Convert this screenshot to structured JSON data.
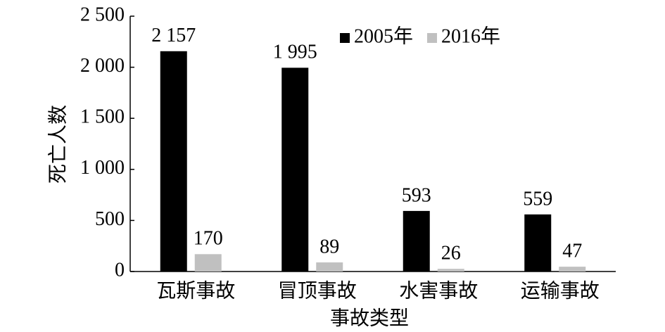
{
  "chart_data": {
    "type": "bar",
    "x_label": "事故类型",
    "y_label": "死亡人数",
    "categories": [
      "瓦斯事故",
      "冒顶事故",
      "水害事故",
      "运输事故"
    ],
    "series": [
      {
        "name": "2005年",
        "color": "#000000",
        "values": [
          2157,
          1995,
          593,
          559
        ],
        "value_labels": [
          "2 157",
          "1 995",
          "593",
          "559"
        ]
      },
      {
        "name": "2016年",
        "color": "#c0c0c0",
        "values": [
          170,
          89,
          26,
          47
        ]
      }
    ],
    "ylim": [
      0,
      2500
    ],
    "yticks": [
      0,
      500,
      {
        "value": 1000,
        "label": "1 000"
      },
      {
        "value": 1500,
        "label": "1 500"
      },
      {
        "value": 2000,
        "label": "2 000"
      },
      {
        "value": 2500,
        "label": "2 500"
      }
    ],
    "grid": false,
    "legend": "top"
  }
}
